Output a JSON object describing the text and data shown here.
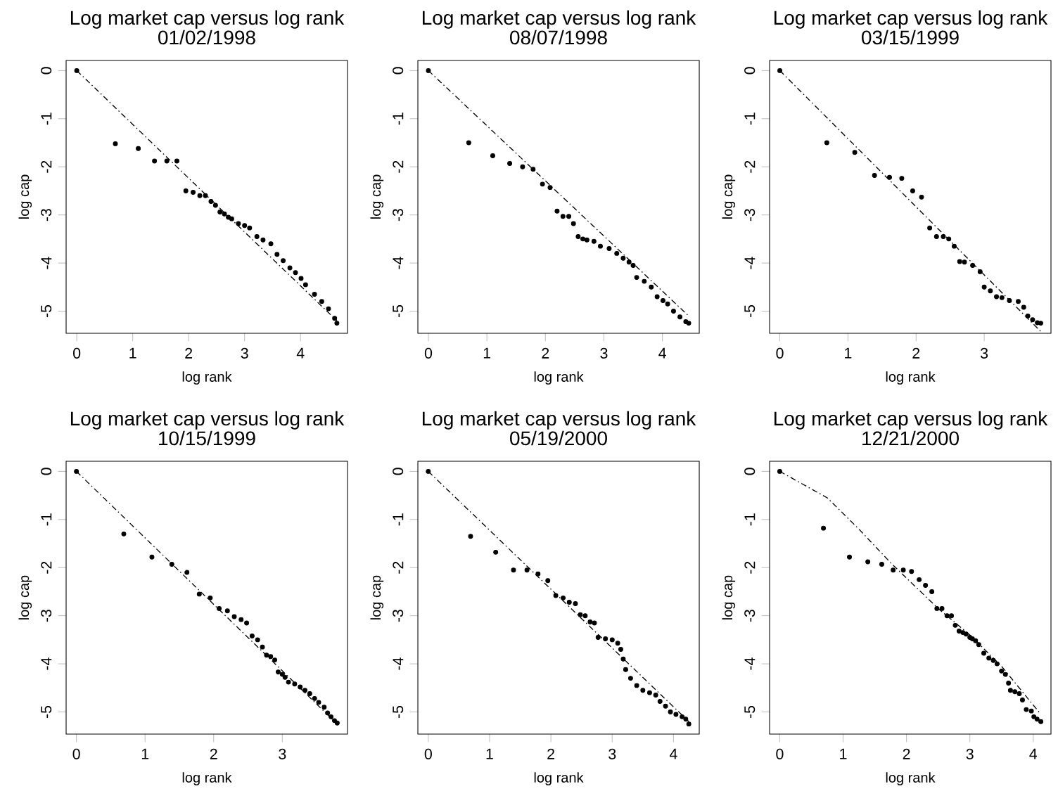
{
  "chart_data": [
    {
      "type": "scatter",
      "title": "Log market cap versus log rank",
      "subtitle": "01/02/1998",
      "xlabel": "log rank",
      "ylabel": "log cap",
      "xlim": [
        -0.19,
        4.84
      ],
      "ylim": [
        -5.46,
        0.21
      ],
      "xticks": [
        0,
        1,
        2,
        3,
        4
      ],
      "yticks": [
        -5,
        -4,
        -3,
        -2,
        -1,
        0
      ],
      "series": [
        {
          "type": "scatter",
          "color": "#000000",
          "marker": "circle",
          "x": [
            0,
            0.69,
            1.1,
            1.39,
            1.61,
            1.79,
            1.95,
            2.08,
            2.2,
            2.3,
            2.4,
            2.48,
            2.56,
            2.64,
            2.71,
            2.77,
            2.89,
            3.0,
            3.09,
            3.22,
            3.33,
            3.47,
            3.58,
            3.69,
            3.81,
            3.91,
            4.01,
            4.09,
            4.25,
            4.38,
            4.5,
            4.61,
            4.65
          ],
          "values": [
            0,
            -1.52,
            -1.62,
            -1.88,
            -1.88,
            -1.88,
            -2.5,
            -2.53,
            -2.6,
            -2.6,
            -2.72,
            -2.8,
            -2.94,
            -2.98,
            -3.05,
            -3.08,
            -3.18,
            -3.22,
            -3.27,
            -3.45,
            -3.52,
            -3.6,
            -3.82,
            -3.95,
            -4.1,
            -4.2,
            -4.32,
            -4.45,
            -4.65,
            -4.8,
            -4.95,
            -5.15,
            -5.25
          ]
        },
        {
          "type": "line",
          "color": "#000000",
          "line_style": "dashdot",
          "x": [
            0,
            4.65
          ],
          "values": [
            0,
            -5.2
          ]
        }
      ]
    },
    {
      "type": "scatter",
      "title": "Log market cap versus log rank",
      "subtitle": "08/07/1998",
      "xlabel": "log rank",
      "ylabel": "log cap",
      "xlim": [
        -0.18,
        4.63
      ],
      "ylim": [
        -5.46,
        0.21
      ],
      "xticks": [
        0,
        1,
        2,
        3,
        4
      ],
      "yticks": [
        -5,
        -4,
        -3,
        -2,
        -1,
        0
      ],
      "series": [
        {
          "type": "scatter",
          "color": "#000000",
          "marker": "circle",
          "x": [
            0,
            0.69,
            1.1,
            1.39,
            1.61,
            1.79,
            1.95,
            2.08,
            2.2,
            2.3,
            2.4,
            2.48,
            2.56,
            2.64,
            2.71,
            2.83,
            2.94,
            3.09,
            3.22,
            3.33,
            3.43,
            3.5,
            3.56,
            3.69,
            3.81,
            3.91,
            4.01,
            4.09,
            4.19,
            4.3,
            4.4,
            4.45
          ],
          "values": [
            0,
            -1.5,
            -1.77,
            -1.93,
            -2.0,
            -2.05,
            -2.36,
            -2.43,
            -2.92,
            -3.03,
            -3.03,
            -3.18,
            -3.45,
            -3.5,
            -3.52,
            -3.55,
            -3.65,
            -3.7,
            -3.8,
            -3.9,
            -3.98,
            -4.05,
            -4.3,
            -4.38,
            -4.5,
            -4.7,
            -4.78,
            -4.85,
            -5.0,
            -5.12,
            -5.22,
            -5.25
          ]
        },
        {
          "type": "line",
          "color": "#000000",
          "line_style": "dashdot",
          "x": [
            0,
            4.45
          ],
          "values": [
            0,
            -5.1
          ]
        }
      ]
    },
    {
      "type": "scatter",
      "title": "Log market cap versus log rank",
      "subtitle": "03/15/1999",
      "xlabel": "log rank",
      "ylabel": "log cap",
      "xlim": [
        -0.15,
        3.98
      ],
      "ylim": [
        -5.46,
        0.21
      ],
      "xticks": [
        0,
        1,
        2,
        3
      ],
      "yticks": [
        -5,
        -4,
        -3,
        -2,
        -1,
        0
      ],
      "series": [
        {
          "type": "scatter",
          "color": "#000000",
          "marker": "circle",
          "x": [
            0,
            0.69,
            1.1,
            1.39,
            1.61,
            1.79,
            1.95,
            2.08,
            2.2,
            2.3,
            2.4,
            2.48,
            2.56,
            2.64,
            2.71,
            2.83,
            2.94,
            3.0,
            3.09,
            3.18,
            3.26,
            3.37,
            3.5,
            3.58,
            3.64,
            3.71,
            3.78,
            3.83
          ],
          "values": [
            0,
            -1.5,
            -1.7,
            -2.18,
            -2.22,
            -2.24,
            -2.5,
            -2.63,
            -3.27,
            -3.45,
            -3.45,
            -3.5,
            -3.65,
            -3.97,
            -3.98,
            -4.05,
            -4.18,
            -4.5,
            -4.58,
            -4.7,
            -4.72,
            -4.78,
            -4.8,
            -4.92,
            -5.1,
            -5.18,
            -5.24,
            -5.25
          ]
        },
        {
          "type": "line",
          "color": "#000000",
          "line_style": "dashdot",
          "x": [
            0,
            3.85
          ],
          "values": [
            0,
            -5.45
          ]
        }
      ]
    },
    {
      "type": "scatter",
      "title": "Log market cap versus log rank",
      "subtitle": "10/15/1999",
      "xlabel": "log rank",
      "ylabel": "log cap",
      "xlim": [
        -0.15,
        3.95
      ],
      "ylim": [
        -5.46,
        0.21
      ],
      "xticks": [
        0,
        1,
        2,
        3
      ],
      "yticks": [
        -5,
        -4,
        -3,
        -2,
        -1,
        0
      ],
      "series": [
        {
          "type": "scatter",
          "color": "#000000",
          "marker": "circle",
          "x": [
            0,
            0.69,
            1.1,
            1.39,
            1.61,
            1.79,
            1.95,
            2.08,
            2.2,
            2.3,
            2.4,
            2.48,
            2.56,
            2.64,
            2.71,
            2.77,
            2.83,
            2.89,
            2.94,
            3.0,
            3.04,
            3.09,
            3.18,
            3.26,
            3.33,
            3.4,
            3.47,
            3.53,
            3.61,
            3.66,
            3.71,
            3.76,
            3.8
          ],
          "values": [
            0,
            -1.3,
            -1.78,
            -1.93,
            -2.1,
            -2.55,
            -2.63,
            -2.85,
            -2.9,
            -3.02,
            -3.08,
            -3.15,
            -3.42,
            -3.5,
            -3.65,
            -3.82,
            -3.85,
            -3.92,
            -4.17,
            -4.22,
            -4.28,
            -4.38,
            -4.42,
            -4.48,
            -4.55,
            -4.62,
            -4.72,
            -4.8,
            -4.9,
            -5.02,
            -5.1,
            -5.18,
            -5.23
          ]
        },
        {
          "type": "line",
          "color": "#000000",
          "line_style": "dashdot",
          "x": [
            0,
            3.8
          ],
          "values": [
            0,
            -5.25
          ]
        }
      ]
    },
    {
      "type": "scatter",
      "title": "Log market cap versus log rank",
      "subtitle": "05/19/2000",
      "xlabel": "log rank",
      "ylabel": "log cap",
      "xlim": [
        -0.17,
        4.42
      ],
      "ylim": [
        -5.46,
        0.21
      ],
      "xticks": [
        0,
        1,
        2,
        3,
        4
      ],
      "yticks": [
        -5,
        -4,
        -3,
        -2,
        -1,
        0
      ],
      "series": [
        {
          "type": "scatter",
          "color": "#000000",
          "marker": "circle",
          "x": [
            0,
            0.69,
            1.1,
            1.39,
            1.61,
            1.79,
            1.95,
            2.08,
            2.2,
            2.3,
            2.4,
            2.48,
            2.56,
            2.64,
            2.71,
            2.77,
            2.89,
            3.0,
            3.09,
            3.14,
            3.18,
            3.22,
            3.3,
            3.4,
            3.5,
            3.61,
            3.71,
            3.78,
            3.87,
            3.95,
            4.04,
            4.14,
            4.2,
            4.25
          ],
          "values": [
            0,
            -1.35,
            -1.68,
            -2.05,
            -2.05,
            -2.13,
            -2.27,
            -2.58,
            -2.63,
            -2.72,
            -2.75,
            -2.98,
            -3.0,
            -3.13,
            -3.15,
            -3.45,
            -3.48,
            -3.5,
            -3.57,
            -3.7,
            -3.9,
            -4.12,
            -4.3,
            -4.45,
            -4.55,
            -4.6,
            -4.65,
            -4.78,
            -4.88,
            -5.0,
            -5.05,
            -5.1,
            -5.15,
            -5.25
          ]
        },
        {
          "type": "line",
          "color": "#000000",
          "line_style": "dashdot",
          "x": [
            0,
            4.25
          ],
          "values": [
            0,
            -5.2
          ]
        }
      ]
    },
    {
      "type": "scatter",
      "title": "Log market cap versus log rank",
      "subtitle": "12/21/2000",
      "xlabel": "log rank",
      "ylabel": "log cap",
      "xlim": [
        -0.16,
        4.28
      ],
      "ylim": [
        -5.46,
        0.21
      ],
      "xticks": [
        0,
        1,
        2,
        3,
        4
      ],
      "yticks": [
        -5,
        -4,
        -3,
        -2,
        -1,
        0
      ],
      "series": [
        {
          "type": "scatter",
          "color": "#000000",
          "marker": "circle",
          "x": [
            0,
            0.69,
            1.1,
            1.39,
            1.61,
            1.79,
            1.95,
            2.08,
            2.2,
            2.3,
            2.4,
            2.48,
            2.56,
            2.64,
            2.71,
            2.77,
            2.83,
            2.89,
            2.94,
            3.0,
            3.04,
            3.09,
            3.14,
            3.22,
            3.3,
            3.37,
            3.43,
            3.5,
            3.56,
            3.61,
            3.64,
            3.71,
            3.78,
            3.83,
            3.89,
            3.97,
            4.01,
            4.06,
            4.12
          ],
          "values": [
            0,
            -1.18,
            -1.78,
            -1.88,
            -1.93,
            -2.05,
            -2.05,
            -2.08,
            -2.25,
            -2.37,
            -2.5,
            -2.85,
            -2.85,
            -3.0,
            -3.0,
            -3.2,
            -3.32,
            -3.35,
            -3.38,
            -3.45,
            -3.48,
            -3.52,
            -3.6,
            -3.78,
            -3.88,
            -3.93,
            -4.0,
            -4.15,
            -4.22,
            -4.4,
            -4.55,
            -4.58,
            -4.62,
            -4.75,
            -4.95,
            -4.98,
            -5.1,
            -5.15,
            -5.2
          ]
        },
        {
          "type": "line",
          "color": "#000000",
          "line_style": "dashdot",
          "x": [
            0,
            0.75,
            1.25,
            1.75,
            2.5,
            3.0,
            3.5,
            4.12
          ],
          "values": [
            0,
            -0.55,
            -1.2,
            -1.9,
            -2.85,
            -3.4,
            -4.05,
            -5.05
          ]
        }
      ]
    }
  ]
}
